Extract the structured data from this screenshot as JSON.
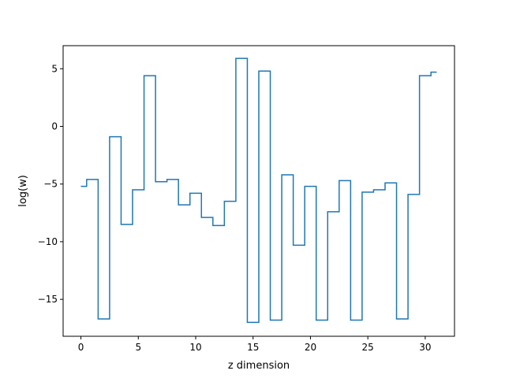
{
  "chart_data": {
    "type": "line",
    "drawstyle": "steps-mid",
    "xlabel": "z dimension",
    "ylabel": "log(w)",
    "xlim": [
      -1.55,
      32.55
    ],
    "ylim": [
      -18.2,
      7.0
    ],
    "xticks": [
      0,
      5,
      10,
      15,
      20,
      25,
      30
    ],
    "yticks": [
      5,
      0,
      -5,
      -10,
      -15
    ],
    "ytick_labels": [
      "5",
      "0",
      "−5",
      "−10",
      "−15"
    ],
    "grid": false,
    "line_color": "#1f77b4",
    "x": [
      0,
      1,
      2,
      3,
      4,
      5,
      6,
      7,
      8,
      9,
      10,
      11,
      12,
      13,
      14,
      15,
      16,
      17,
      18,
      19,
      20,
      21,
      22,
      23,
      24,
      25,
      26,
      27,
      28,
      29,
      30,
      31
    ],
    "y": [
      -5.2,
      -4.6,
      -16.7,
      -0.9,
      -8.5,
      -5.5,
      4.4,
      -4.8,
      -4.6,
      -6.8,
      -5.8,
      -7.9,
      -8.6,
      -6.5,
      5.9,
      -17.0,
      4.8,
      -16.8,
      -4.2,
      -10.3,
      -5.2,
      -16.8,
      -7.4,
      -4.7,
      -16.8,
      -5.7,
      -5.5,
      -4.9,
      -16.7,
      -5.9,
      4.4,
      4.7
    ]
  }
}
